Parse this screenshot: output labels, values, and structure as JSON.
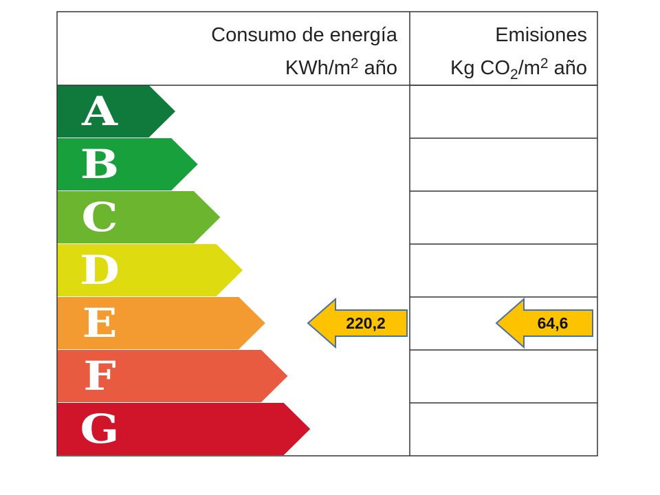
{
  "header": {
    "energy_title": "Consumo de energía",
    "energy_unit": [
      "KWh/m",
      "2",
      "año"
    ],
    "emissions_title": "Emisiones",
    "emissions_unit": [
      "Kg CO",
      "2",
      "/m",
      "2",
      "año"
    ]
  },
  "grades": [
    {
      "letter": "A",
      "color": "#0f7a3c"
    },
    {
      "letter": "B",
      "color": "#17a03b"
    },
    {
      "letter": "C",
      "color": "#6bb52f"
    },
    {
      "letter": "D",
      "color": "#dedb10"
    },
    {
      "letter": "E",
      "color": "#f39a31",
      "energy": "220,2",
      "emissions": "64,6"
    },
    {
      "letter": "F",
      "color": "#e85b40"
    },
    {
      "letter": "G",
      "color": "#d0152b"
    }
  ]
}
